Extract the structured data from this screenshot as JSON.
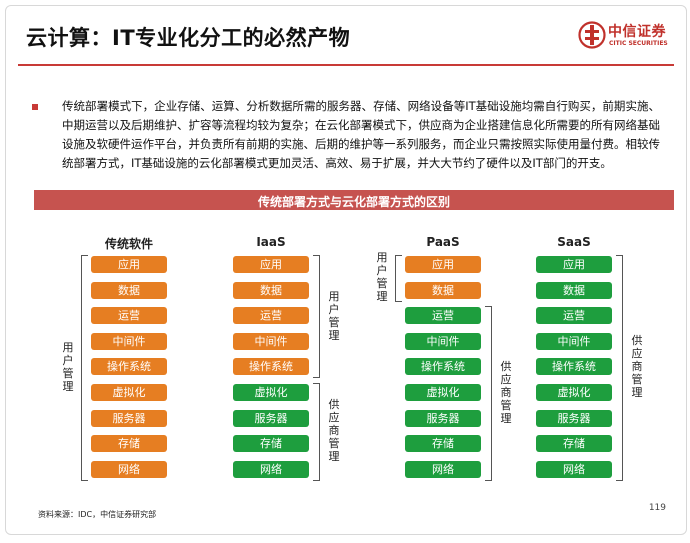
{
  "header": {
    "title": "云计算：IT专业化分工的必然产物",
    "logo_cn": "中信证券",
    "logo_en": "CITIC SECURITIES"
  },
  "intro": "传统部署模式下，企业存储、运算、分析数据所需的服务器、存储、网络设备等IT基础设施均需自行购买，前期实施、中期运营以及后期维护、扩容等流程均较为复杂；在云化部署模式下，供应商为企业搭建信息化所需要的所有网络基础设施及软硬件运作平台，并负责所有前期的实施、后期的维护等一系列服务，而企业只需按照实际使用量付费。相较传统部署方式，IT基础设施的云化部署模式更加灵活、高效、易于扩展，并大大节约了硬件以及IT部门的开支。",
  "banner": "传统部署方式与云化部署方式的区别",
  "colors": {
    "accent": "#c83a36",
    "orange": "#e67e22",
    "green": "#1e9e3e"
  },
  "columns": [
    {
      "header": "传统软件",
      "layers": [
        "应用",
        "数据",
        "运营",
        "中间件",
        "操作系统",
        "虚拟化",
        "服务器",
        "存储",
        "网络"
      ],
      "user_managed": 9,
      "user_label": "用户管理",
      "vendor_label": ""
    },
    {
      "header": "IaaS",
      "layers": [
        "应用",
        "数据",
        "运营",
        "中间件",
        "操作系统",
        "虚拟化",
        "服务器",
        "存储",
        "网络"
      ],
      "user_managed": 5,
      "user_label": "用户管理",
      "vendor_label": "供应商管理"
    },
    {
      "header": "PaaS",
      "layers": [
        "应用",
        "数据",
        "运营",
        "中间件",
        "操作系统",
        "虚拟化",
        "服务器",
        "存储",
        "网络"
      ],
      "user_managed": 2,
      "user_label": "用户管理",
      "vendor_label": "供应商管理"
    },
    {
      "header": "SaaS",
      "layers": [
        "应用",
        "数据",
        "运营",
        "中间件",
        "操作系统",
        "虚拟化",
        "服务器",
        "存储",
        "网络"
      ],
      "user_managed": 0,
      "user_label": "",
      "vendor_label": "供应商管理"
    }
  ],
  "footer": {
    "source": "资料来源：IDC，中信证券研究部",
    "page": "119"
  }
}
